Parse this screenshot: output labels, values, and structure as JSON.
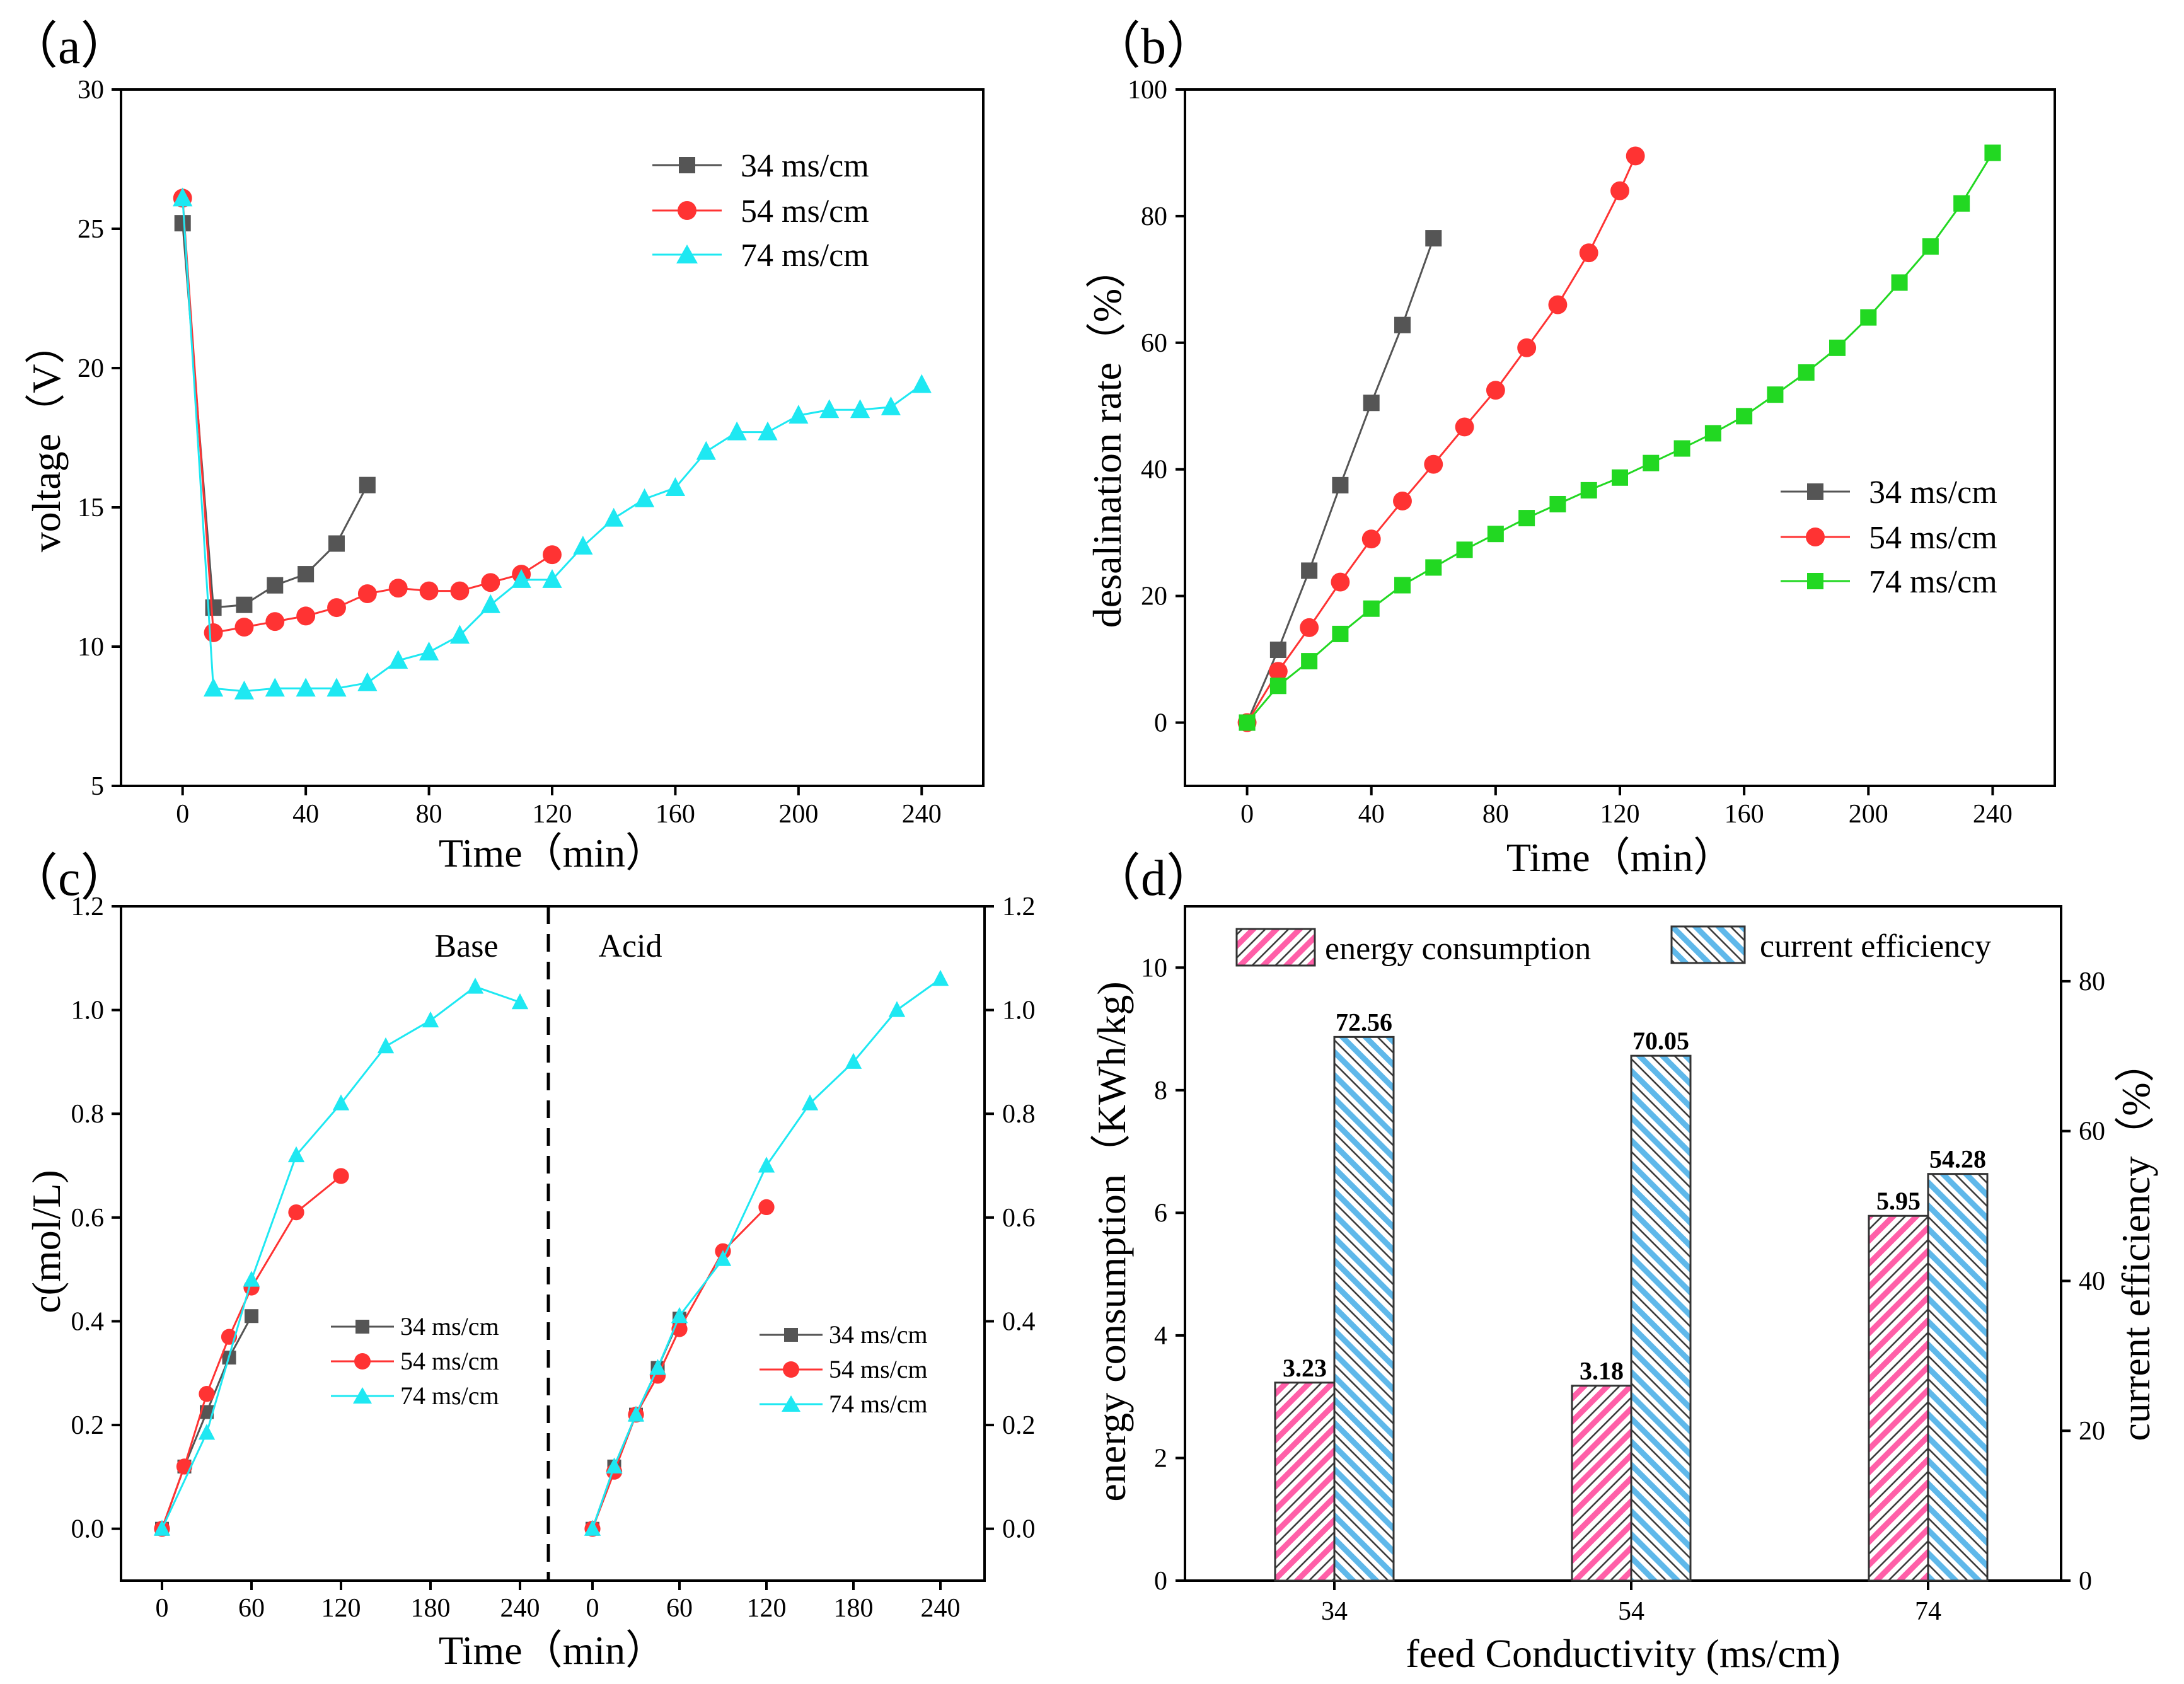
{
  "colors": {
    "s34": "#555555",
    "s54": "#ff3333",
    "s74": "#1ee8f2",
    "s74_green": "#22d822",
    "energy_bar": "#ff5fa8",
    "efficiency_bar": "#5fb8ea"
  },
  "chart_data": [
    {
      "id": "a",
      "panel_label": "（a）",
      "type": "line",
      "xlabel": "Time（min）",
      "ylabel": "voltage（V）",
      "xlim": [
        -20,
        260
      ],
      "ylim": [
        5,
        30
      ],
      "xticks": [
        0,
        40,
        80,
        120,
        160,
        200,
        240
      ],
      "yticks": [
        5,
        10,
        15,
        20,
        25,
        30
      ],
      "legend_position": "top-right",
      "series": [
        {
          "name": "34 ms/cm",
          "color_key": "s34",
          "marker": "square",
          "x": [
            0,
            10,
            20,
            30,
            40,
            50,
            60
          ],
          "y": [
            25.2,
            11.4,
            11.5,
            12.2,
            12.6,
            13.7,
            15.8
          ]
        },
        {
          "name": "54 ms/cm",
          "color_key": "s54",
          "marker": "circle",
          "x": [
            0,
            10,
            20,
            30,
            40,
            50,
            60,
            70,
            80,
            90,
            100,
            110,
            120
          ],
          "y": [
            26.1,
            10.5,
            10.7,
            10.9,
            11.1,
            11.4,
            11.9,
            12.1,
            12.0,
            12.0,
            12.3,
            12.6,
            13.3
          ]
        },
        {
          "name": "74 ms/cm",
          "color_key": "s74",
          "marker": "triangle",
          "x": [
            0,
            10,
            20,
            30,
            40,
            50,
            60,
            70,
            80,
            90,
            100,
            110,
            120,
            130,
            140,
            150,
            160,
            170,
            180,
            190,
            200,
            210,
            220,
            230,
            240
          ],
          "y": [
            26.1,
            8.5,
            8.4,
            8.5,
            8.5,
            8.5,
            8.7,
            9.5,
            9.8,
            10.4,
            11.5,
            12.4,
            12.4,
            13.6,
            14.6,
            15.3,
            15.7,
            17.0,
            17.7,
            17.7,
            18.3,
            18.5,
            18.5,
            18.6,
            19.4
          ]
        }
      ]
    },
    {
      "id": "b",
      "panel_label": "（b）",
      "type": "line",
      "xlabel": "Time（min）",
      "ylabel": "desalination rate（%）",
      "xlim": [
        -20,
        260
      ],
      "ylim": [
        -10,
        100
      ],
      "xticks": [
        0,
        40,
        80,
        120,
        160,
        200,
        240
      ],
      "yticks": [
        0,
        20,
        40,
        60,
        80,
        100
      ],
      "legend_position": "center-right",
      "series": [
        {
          "name": "34 ms/cm",
          "color_key": "s34",
          "marker": "square",
          "x": [
            0,
            10,
            20,
            30,
            40,
            50,
            60
          ],
          "y": [
            0,
            11.5,
            24,
            37.5,
            50.5,
            62.8,
            76.5
          ]
        },
        {
          "name": "54 ms/cm",
          "color_key": "s54",
          "marker": "circle",
          "x": [
            0,
            10,
            20,
            30,
            40,
            50,
            60,
            70,
            80,
            90,
            100,
            110,
            120,
            125
          ],
          "y": [
            0,
            8.1,
            15,
            22.2,
            29,
            35,
            40.8,
            46.7,
            52.5,
            59.2,
            66,
            74.2,
            84,
            89.5
          ]
        },
        {
          "name": "74 ms/cm",
          "color_key": "s74_green",
          "marker": "square",
          "x": [
            0,
            10,
            20,
            30,
            40,
            50,
            60,
            70,
            80,
            90,
            100,
            110,
            120,
            130,
            140,
            150,
            160,
            170,
            180,
            190,
            200,
            210,
            220,
            230,
            240
          ],
          "y": [
            0,
            5.8,
            9.7,
            14,
            18,
            21.7,
            24.5,
            27.3,
            29.8,
            32.3,
            34.5,
            36.7,
            38.7,
            41,
            43.3,
            45.7,
            48.4,
            51.8,
            55.3,
            59.2,
            64,
            69.5,
            75.2,
            82,
            90
          ]
        }
      ]
    },
    {
      "id": "c",
      "panel_label": "（c）",
      "type": "line",
      "xlabel": "Time（min）",
      "ylabel": "c(mol/L)",
      "ylim": [
        -0.1,
        1.2
      ],
      "yticks": [
        0.0,
        0.2,
        0.4,
        0.6,
        0.8,
        1.0,
        1.2
      ],
      "ytick_labels": [
        "0.0",
        "0.2",
        "0.4",
        "0.6",
        "0.8",
        "1.0",
        "1.2"
      ],
      "xticks": [
        0,
        60,
        120,
        180,
        240
      ],
      "annotations": [
        "Base",
        "Acid"
      ],
      "legend_position": "lower-center of each half",
      "base": [
        {
          "name": "34 ms/cm",
          "color_key": "s34",
          "marker": "square",
          "x": [
            0,
            15,
            30,
            45,
            60
          ],
          "y": [
            0,
            0.12,
            0.225,
            0.33,
            0.41
          ]
        },
        {
          "name": "54 ms/cm",
          "color_key": "s54",
          "marker": "circle",
          "x": [
            0,
            15,
            30,
            45,
            60,
            90,
            120
          ],
          "y": [
            0,
            0.12,
            0.26,
            0.37,
            0.465,
            0.61,
            0.68
          ]
        },
        {
          "name": "74 ms/cm",
          "color_key": "s74",
          "marker": "triangle",
          "x": [
            0,
            30,
            60,
            90,
            120,
            150,
            180,
            210,
            240
          ],
          "y": [
            0,
            0.185,
            0.48,
            0.72,
            0.82,
            0.93,
            0.98,
            1.045,
            1.015
          ]
        }
      ],
      "acid": [
        {
          "name": "34 ms/cm",
          "color_key": "s34",
          "marker": "square",
          "x": [
            0,
            15,
            30,
            45,
            60
          ],
          "y": [
            0,
            0.12,
            0.22,
            0.31,
            0.405
          ]
        },
        {
          "name": "54 ms/cm",
          "color_key": "s54",
          "marker": "circle",
          "x": [
            0,
            15,
            30,
            45,
            60,
            90,
            120
          ],
          "y": [
            0,
            0.11,
            0.22,
            0.295,
            0.385,
            0.535,
            0.62
          ]
        },
        {
          "name": "74 ms/cm",
          "color_key": "s74",
          "marker": "triangle",
          "x": [
            0,
            15,
            30,
            45,
            60,
            90,
            120,
            150,
            180,
            210,
            240
          ],
          "y": [
            0,
            0.12,
            0.22,
            0.31,
            0.41,
            0.52,
            0.7,
            0.82,
            0.9,
            1.0,
            1.06
          ]
        }
      ]
    },
    {
      "id": "d",
      "panel_label": "（d）",
      "type": "bar",
      "xlabel": "feed Conductivity (ms/cm)",
      "ylabel_left": "energy consumption（KWh/kg)",
      "ylabel_right": "current efficiency（%）",
      "categories": [
        "34",
        "54",
        "74"
      ],
      "ylim_left": [
        0,
        11
      ],
      "ylim_right": [
        0,
        90
      ],
      "yticks_left": [
        0,
        2,
        4,
        6,
        8,
        10
      ],
      "yticks_right": [
        0,
        20,
        40,
        60,
        80
      ],
      "legend_position": "top",
      "series": [
        {
          "name": "energy consumption",
          "color_key": "energy_bar",
          "axis": "left",
          "values": [
            3.23,
            3.18,
            5.95
          ],
          "labels": [
            "3.23",
            "3.18",
            "5.95"
          ]
        },
        {
          "name": "current efficiency",
          "color_key": "efficiency_bar",
          "axis": "right",
          "values": [
            72.56,
            70.05,
            54.28
          ],
          "labels": [
            "72.56",
            "70.05",
            "54.28"
          ]
        }
      ]
    }
  ]
}
